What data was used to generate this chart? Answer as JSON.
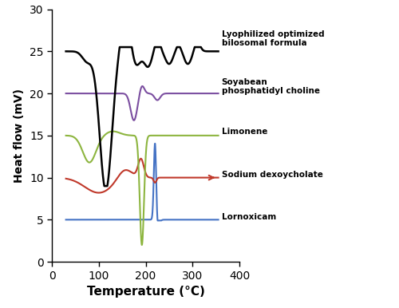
{
  "title": "",
  "xlabel": "Temperature (°C)",
  "ylabel": "Heat flow (mV)",
  "xlim": [
    0,
    400
  ],
  "ylim": [
    0,
    30
  ],
  "xticks": [
    0,
    100,
    200,
    300,
    400
  ],
  "yticks": [
    0,
    5,
    10,
    15,
    20,
    25,
    30
  ],
  "background_color": "#ffffff",
  "figsize": [
    5.0,
    3.86
  ],
  "dpi": 100,
  "lines": {
    "lornoxicam": {
      "color": "#4472c4",
      "baseline": 5.0,
      "label": "Lornoxicam"
    },
    "sdc": {
      "color": "#c0392b",
      "baseline": 10.0,
      "label": "Sodium dexoycholate"
    },
    "limonene": {
      "color": "#8db53f",
      "baseline": 15.0,
      "label": "Limonene"
    },
    "spc": {
      "color": "#7b4ea0",
      "baseline": 20.0,
      "label": "Soyabean\nphosphatidyl choline"
    },
    "lyophilized": {
      "color": "#000000",
      "baseline": 25.0,
      "label": "Lyophilized optimized\nbilosomal formula"
    }
  }
}
